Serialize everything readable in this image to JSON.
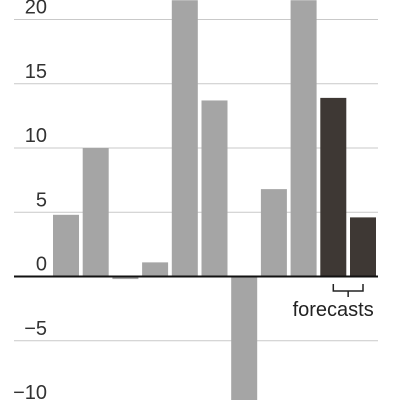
{
  "chart_data": {
    "type": "bar",
    "title": "",
    "xlabel": "",
    "ylabel": "",
    "ylim": [
      -10.9,
      21.1
    ],
    "yticks": [
      -10,
      -5,
      0,
      5,
      10,
      15,
      20
    ],
    "ytick_labels": [
      "−10",
      "−5",
      "0",
      "5",
      "10",
      "15",
      "20"
    ],
    "grid": true,
    "values": [
      4.8,
      10.0,
      -0.2,
      1.1,
      21.5,
      13.7,
      -10.9,
      6.8,
      21.5,
      13.9,
      4.6
    ],
    "forecast": [
      false,
      false,
      false,
      false,
      false,
      false,
      false,
      false,
      false,
      true,
      true
    ],
    "colors": {
      "actual": "#a5a5a5",
      "forecast": "#3e3834",
      "grid": "#c9c9c9",
      "axis": "#111111",
      "text": "#333333"
    },
    "annotations": [
      {
        "text": "forecasts",
        "bar_indices": [
          9,
          10
        ]
      }
    ]
  }
}
